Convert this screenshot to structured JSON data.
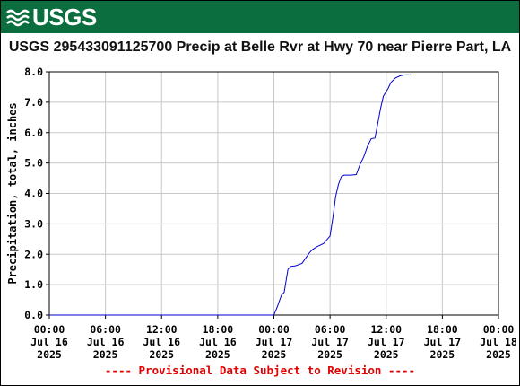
{
  "header": {
    "logo_text": "USGS",
    "logo_icon": "usgs-wave-icon",
    "brand_color": "#0b6e3f"
  },
  "chart_data": {
    "type": "line",
    "title": "USGS 295433091125700 Precip at Belle Rvr at Hwy 70 near Pierre Part, LA",
    "ylabel": "Precipitation, total, inches",
    "xlabel": "",
    "ylim": [
      0,
      8
    ],
    "yticks": [
      "0.0",
      "1.0",
      "2.0",
      "3.0",
      "4.0",
      "5.0",
      "6.0",
      "7.0",
      "8.0"
    ],
    "xlim_hours": [
      0,
      48
    ],
    "xticks": [
      {
        "hour": 0,
        "time": "00:00",
        "date": "Jul 16",
        "year": "2025"
      },
      {
        "hour": 6,
        "time": "06:00",
        "date": "Jul 16",
        "year": "2025"
      },
      {
        "hour": 12,
        "time": "12:00",
        "date": "Jul 16",
        "year": "2025"
      },
      {
        "hour": 18,
        "time": "18:00",
        "date": "Jul 16",
        "year": "2025"
      },
      {
        "hour": 24,
        "time": "00:00",
        "date": "Jul 17",
        "year": "2025"
      },
      {
        "hour": 30,
        "time": "06:00",
        "date": "Jul 17",
        "year": "2025"
      },
      {
        "hour": 36,
        "time": "12:00",
        "date": "Jul 17",
        "year": "2025"
      },
      {
        "hour": 42,
        "time": "18:00",
        "date": "Jul 17",
        "year": "2025"
      },
      {
        "hour": 48,
        "time": "00:00",
        "date": "Jul 18",
        "year": "2025"
      }
    ],
    "grid": true,
    "line_color": "#0000cc",
    "series": [
      {
        "x": [
          0,
          24.0,
          24.4,
          24.8,
          25.1,
          25.5,
          25.8,
          26.3,
          27.0,
          27.8,
          28.1,
          28.6,
          29.3,
          30.0,
          30.3,
          30.6,
          30.9,
          31.2,
          31.5,
          31.8,
          32.2,
          32.8,
          33.2,
          33.6,
          34.0,
          34.4,
          34.8,
          35.1,
          35.4,
          35.7,
          36.2,
          36.5,
          37.0,
          37.5,
          38.0,
          38.8
        ],
        "y": [
          0,
          0.0,
          0.3,
          0.65,
          0.75,
          1.5,
          1.6,
          1.62,
          1.7,
          2.05,
          2.15,
          2.25,
          2.35,
          2.6,
          3.2,
          3.9,
          4.3,
          4.55,
          4.6,
          4.6,
          4.6,
          4.62,
          4.95,
          5.2,
          5.55,
          5.8,
          5.82,
          6.3,
          6.8,
          7.2,
          7.45,
          7.65,
          7.8,
          7.87,
          7.9,
          7.9
        ]
      }
    ]
  },
  "footnote": "---- Provisional Data Subject to Revision ----"
}
